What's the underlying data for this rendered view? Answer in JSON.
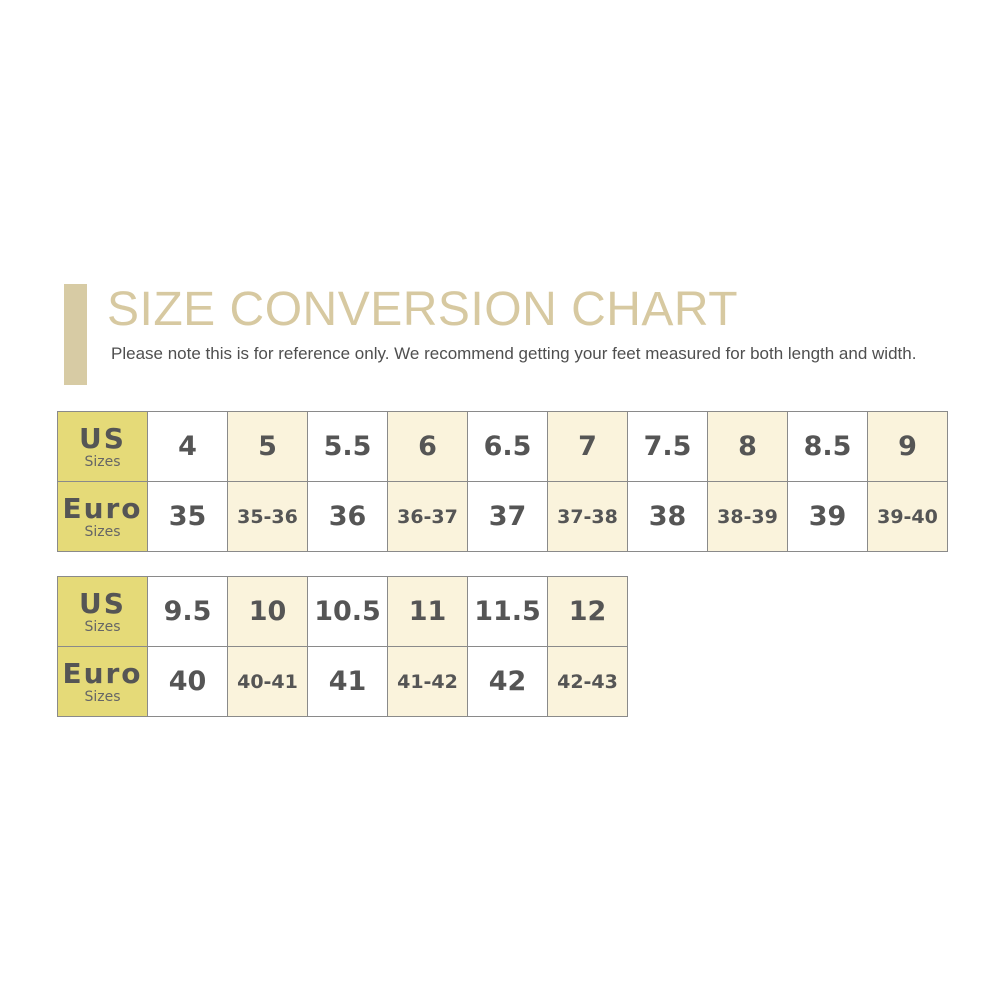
{
  "title": "SIZE CONVERSION CHART",
  "note": "Please note this is for reference only. We recommend getting your feet measured for both length and width.",
  "row_labels": {
    "us": {
      "main": "US",
      "sub": "Sizes"
    },
    "euro": {
      "main": "Euro",
      "sub": "Sizes"
    }
  },
  "colors": {
    "accent_bar": "#d7cba4",
    "title": "#d7c9a1",
    "header_cell": "#e5da78",
    "alt_cell": "#faf3dc"
  },
  "tables": [
    {
      "us": [
        "4",
        "5",
        "5.5",
        "6",
        "6.5",
        "7",
        "7.5",
        "8",
        "8.5",
        "9"
      ],
      "euro": [
        "35",
        "35-36",
        "36",
        "36-37",
        "37",
        "37-38",
        "38",
        "38-39",
        "39",
        "39-40"
      ]
    },
    {
      "us": [
        "9.5",
        "10",
        "10.5",
        "11",
        "11.5",
        "12"
      ],
      "euro": [
        "40",
        "40-41",
        "41",
        "41-42",
        "42",
        "42-43"
      ]
    }
  ]
}
